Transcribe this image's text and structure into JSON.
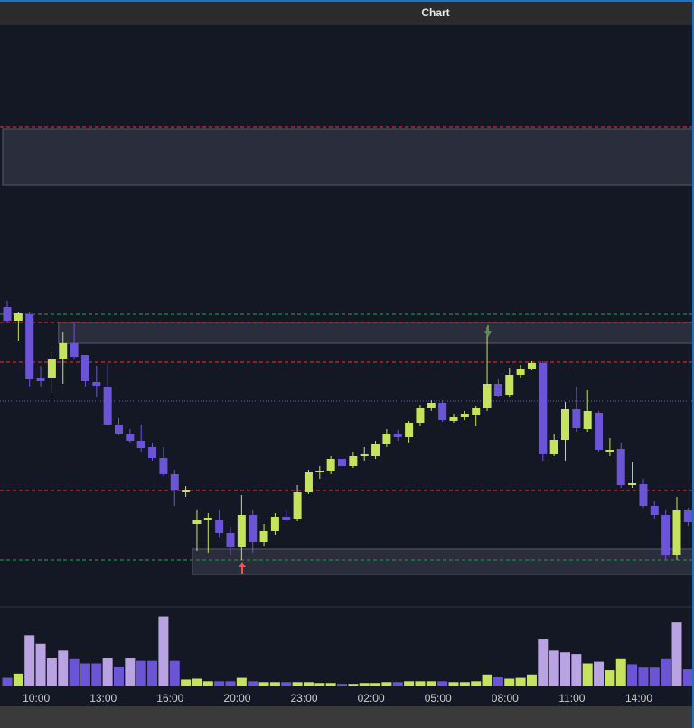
{
  "chart_data": {
    "type": "candlestick",
    "title": "Chart",
    "up_color": "#c5e35c",
    "down_color": "#6b55d6",
    "open": [
      360,
      345,
      352,
      282,
      282,
      303,
      320,
      307,
      277,
      272,
      230,
      220,
      212,
      205,
      193,
      175,
      155,
      120,
      124,
      124,
      110,
      94,
      130,
      100,
      112,
      128,
      125,
      155,
      177,
      178,
      192,
      184,
      195,
      195,
      208,
      220,
      216,
      232,
      248,
      254,
      234,
      238,
      240,
      248,
      275,
      263,
      285,
      292,
      298,
      197,
      213,
      247,
      225,
      243,
      200,
      203,
      163,
      164,
      140,
      130,
      86,
      135
    ],
    "high": [
      367,
      355,
      355,
      295,
      310,
      332,
      343,
      307,
      295,
      298,
      237,
      225,
      230,
      210,
      205,
      180,
      162,
      135,
      132,
      135,
      117,
      152,
      135,
      120,
      132,
      135,
      163,
      180,
      184,
      195,
      195,
      200,
      205,
      212,
      225,
      224,
      234,
      252,
      257,
      257,
      242,
      245,
      250,
      338,
      280,
      293,
      296,
      300,
      300,
      220,
      255,
      272,
      268,
      245,
      215,
      210,
      188,
      170,
      145,
      135,
      150,
      138
    ],
    "low": [
      343,
      323,
      272,
      272,
      265,
      275,
      302,
      272,
      260,
      230,
      218,
      210,
      200,
      190,
      173,
      140,
      150,
      90,
      88,
      105,
      85,
      80,
      88,
      95,
      108,
      122,
      123,
      153,
      170,
      175,
      180,
      182,
      190,
      192,
      205,
      212,
      210,
      228,
      245,
      233,
      232,
      235,
      228,
      245,
      260,
      260,
      282,
      290,
      190,
      195,
      190,
      222,
      222,
      200,
      195,
      160,
      160,
      138,
      125,
      80,
      80,
      118
    ],
    "close": [
      345,
      353,
      280,
      278,
      302,
      320,
      305,
      278,
      273,
      230,
      220,
      212,
      204,
      193,
      175,
      157,
      157,
      124,
      126,
      110,
      94,
      130,
      100,
      112,
      128,
      124,
      155,
      177,
      179,
      192,
      184,
      195,
      197,
      208,
      220,
      216,
      232,
      248,
      254,
      235,
      238,
      242,
      248,
      275,
      262,
      285,
      292,
      298,
      197,
      213,
      247,
      226,
      245,
      202,
      202,
      163,
      165,
      140,
      130,
      85,
      135,
      122
    ],
    "volume": [
      10,
      15,
      60,
      50,
      33,
      42,
      32,
      27,
      27,
      33,
      23,
      33,
      30,
      30,
      82,
      30,
      8,
      9,
      6,
      6,
      6,
      10,
      6,
      5,
      5,
      5,
      5,
      5,
      4,
      4,
      3,
      3,
      4,
      4,
      5,
      5,
      6,
      6,
      6,
      6,
      5,
      5,
      6,
      14,
      11,
      9,
      10,
      14,
      55,
      42,
      40,
      38,
      27,
      29,
      19,
      32,
      26,
      22,
      22,
      32,
      75,
      20
    ],
    "volume_colors": [
      "#6b55d6",
      "#c5e35c",
      "#b9a3e3",
      "#b9a3e3",
      "#b9a3e3",
      "#b9a3e3",
      "#6b55d6",
      "#6b55d6",
      "#6b55d6",
      "#b9a3e3",
      "#6b55d6",
      "#b9a3e3",
      "#6b55d6",
      "#6b55d6",
      "#b9a3e3",
      "#6b55d6",
      "#c5e35c",
      "#c5e35c",
      "#c5e35c",
      "#6b55d6",
      "#6b55d6",
      "#c5e35c",
      "#6b55d6",
      "#c5e35c",
      "#c5e35c",
      "#6b55d6",
      "#c5e35c",
      "#c5e35c",
      "#c5e35c",
      "#c5e35c",
      "#6b55d6",
      "#c5e35c",
      "#c5e35c",
      "#c5e35c",
      "#c5e35c",
      "#6b55d6",
      "#c5e35c",
      "#c5e35c",
      "#c5e35c",
      "#6b55d6",
      "#c5e35c",
      "#c5e35c",
      "#c5e35c",
      "#c5e35c",
      "#6b55d6",
      "#c5e35c",
      "#c5e35c",
      "#c5e35c",
      "#b9a3e3",
      "#b9a3e3",
      "#b9a3e3",
      "#b9a3e3",
      "#c5e35c",
      "#b9a3e3",
      "#c5e35c",
      "#c5e35c",
      "#6b55d6",
      "#6b55d6",
      "#6b55d6",
      "#6b55d6",
      "#b9a3e3",
      "#6b55d6"
    ],
    "ylim": [
      28,
      672
    ],
    "volume_ylim": [
      0,
      90
    ],
    "xticks": [
      {
        "value": 2.6,
        "label": "10:00"
      },
      {
        "value": 8.6,
        "label": "13:00"
      },
      {
        "value": 14.6,
        "label": "16:00"
      },
      {
        "value": 20.6,
        "label": "20:00"
      },
      {
        "value": 26.6,
        "label": "23:00"
      },
      {
        "value": 32.6,
        "label": "02:00"
      },
      {
        "value": 38.6,
        "label": "05:00"
      },
      {
        "value": 44.6,
        "label": "08:00"
      },
      {
        "value": 50.6,
        "label": "11:00"
      },
      {
        "value": 56.6,
        "label": "14:00"
      }
    ],
    "levels": [
      {
        "price": 559,
        "color": "#d0282c"
      },
      {
        "price": 343,
        "color": "#d0282c"
      },
      {
        "price": 299,
        "color": "#d0282c"
      },
      {
        "price": 157,
        "color": "#d0282c"
      },
      {
        "price": 352,
        "color": "#1f8a3a"
      },
      {
        "price": 80,
        "color": "#1f8a3a"
      },
      {
        "price": 256,
        "color": "#4a4fa8"
      }
    ],
    "zones": [
      {
        "from": 0,
        "low": 495,
        "high": 557
      },
      {
        "from": 5,
        "low": 320,
        "high": 343
      },
      {
        "from": 17,
        "low": 64,
        "high": 92
      }
    ]
  }
}
